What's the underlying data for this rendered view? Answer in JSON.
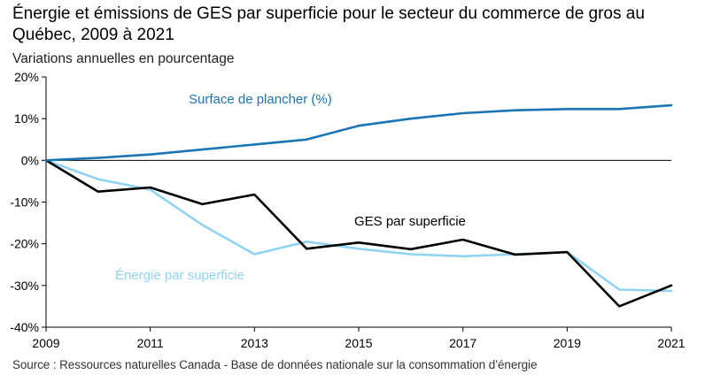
{
  "title": "Énergie et émissions de GES par superficie pour le secteur du commerce de gros au Québec, 2009 à 2021",
  "subtitle": "Variations annuelles en pourcentage",
  "source": "Source : Ressources naturelles Canada - Base de données nationale sur la consommation d’énergie",
  "chart_data": {
    "type": "line",
    "x": [
      2009,
      2010,
      2011,
      2012,
      2013,
      2014,
      2015,
      2016,
      2017,
      2018,
      2019,
      2020,
      2021
    ],
    "xticks": [
      2009,
      2011,
      2013,
      2015,
      2017,
      2019,
      2021
    ],
    "xlim": [
      2009,
      2021
    ],
    "ylim": [
      -40,
      20
    ],
    "yticks": [
      20,
      10,
      0,
      -10,
      -20,
      -30,
      -40
    ],
    "yticklabels": [
      "20%",
      "10%",
      "0%",
      "-10%",
      "-20%",
      "-30%",
      "-40%"
    ],
    "series": [
      {
        "name": "Surface de plancher (%)",
        "color": "#1a75b4",
        "values": [
          0,
          0.6,
          1.4,
          2.6,
          3.8,
          5.0,
          8.3,
          10.0,
          11.3,
          12.0,
          12.3,
          12.3,
          13.2
        ]
      },
      {
        "name": "GES par superficie",
        "color": "#000000",
        "values": [
          0,
          -7.5,
          -6.5,
          -10.5,
          -8.2,
          -21.2,
          -19.7,
          -21.3,
          -19.0,
          -22.6,
          -22.0,
          -35.0,
          -30.0
        ]
      },
      {
        "name": "Énergie par superficie",
        "color": "#8fd3f2",
        "values": [
          0,
          -4.5,
          -7.0,
          -15.5,
          -22.5,
          -19.5,
          -21.2,
          -22.5,
          -23.0,
          -22.5,
          -22.0,
          -31.0,
          -31.3
        ]
      }
    ]
  }
}
